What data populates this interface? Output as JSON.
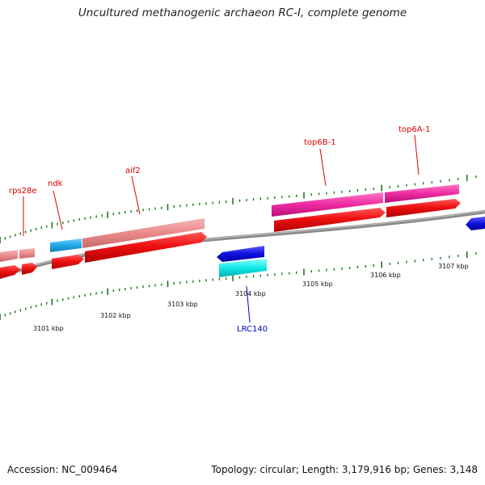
{
  "title": "Uncultured methanogenic archaeon RC-I, complete genome",
  "footer": {
    "accession": "Accession: NC_009464",
    "summary": "Topology: circular; Length: 3,179,916 bp; Genes: 3,148"
  },
  "colors": {
    "backbone": "#888888",
    "tick": "#1a7a1a",
    "cds": "#ee1111",
    "rRNA_like_light": "#ea8a8a",
    "magenta": "#ee2aa0",
    "blue": "#1010dd",
    "cyan": "#10e8e8",
    "sky": "#20a8e8",
    "label_red": "#dd0000",
    "label_blue": "#0000cc"
  },
  "scale_ticks": [
    {
      "label": "3101 kbp"
    },
    {
      "label": "3102 kbp"
    },
    {
      "label": "3103 kbp"
    },
    {
      "label": "3104 kbp"
    },
    {
      "label": "3105 kbp"
    },
    {
      "label": "3106 kbp"
    },
    {
      "label": "3107 kbp"
    }
  ],
  "gene_labels": [
    {
      "name": "rps28e",
      "color": "#dd0000"
    },
    {
      "name": "ndk",
      "color": "#dd0000"
    },
    {
      "name": "aif2",
      "color": "#dd0000"
    },
    {
      "name": "top6B-1",
      "color": "#dd0000"
    },
    {
      "name": "top6A-1",
      "color": "#dd0000"
    },
    {
      "name": "LRC140",
      "color": "#0000cc"
    }
  ]
}
